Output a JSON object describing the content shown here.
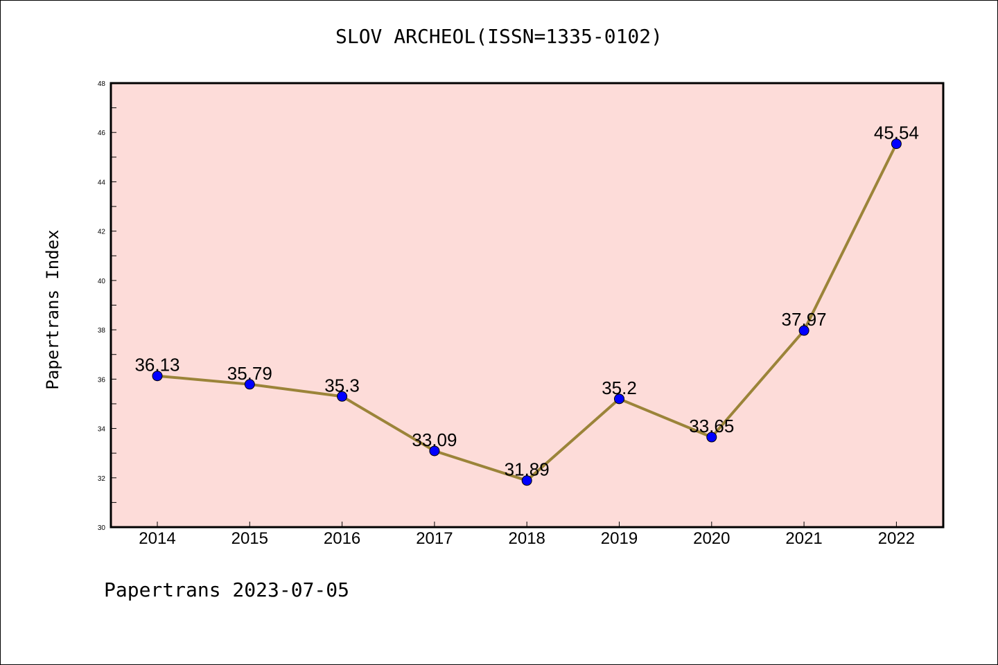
{
  "chart_data": {
    "type": "line",
    "title": "SLOV ARCHEOL(ISSN=1335-0102)",
    "xlabel": "",
    "ylabel": "Papertrans Index",
    "categories": [
      "2014",
      "2015",
      "2016",
      "2017",
      "2018",
      "2019",
      "2020",
      "2021",
      "2022"
    ],
    "series": [
      {
        "values": [
          36.13,
          35.79,
          35.3,
          33.09,
          31.89,
          35.2,
          33.65,
          37.97,
          45.54
        ],
        "data_labels": [
          "36.13",
          "35.79",
          "35.3",
          "33.09",
          "31.89",
          "35.2",
          "33.65",
          "37.97",
          "45.54"
        ]
      }
    ],
    "ylim": [
      30,
      48
    ],
    "y_ticks": [
      30,
      32,
      34,
      36,
      38,
      40,
      42,
      44,
      46,
      48
    ],
    "grid": false,
    "legend": "none",
    "colors": {
      "plot_background": "#fddcd9",
      "line": "#9b8439",
      "marker": "#0000ff"
    }
  },
  "footer": {
    "note": "Papertrans 2023-07-05"
  }
}
